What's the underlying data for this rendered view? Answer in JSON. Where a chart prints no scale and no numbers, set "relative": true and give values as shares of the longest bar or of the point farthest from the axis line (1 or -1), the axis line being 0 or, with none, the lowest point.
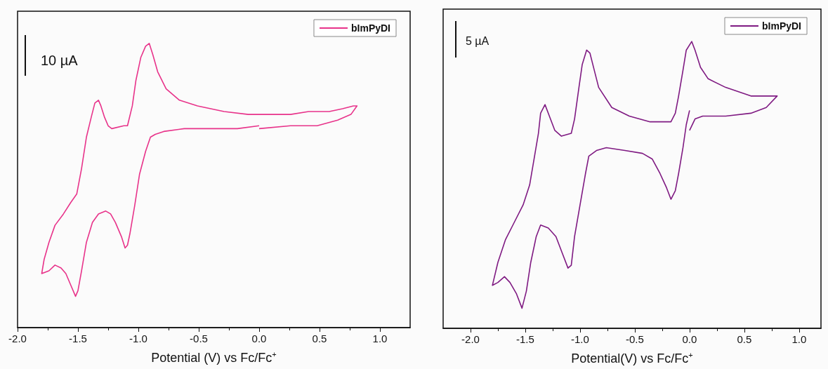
{
  "chart_data": [
    {
      "type": "line",
      "relative": true,
      "xlabel": "Potential (V) vs Fc/Fc$^{+}$",
      "xlim": [
        -2.0,
        1.25
      ],
      "xticks": [
        {
          "value": -2.0,
          "label": "-2.0"
        },
        {
          "value": -1.5,
          "label": "-1.5"
        },
        {
          "value": -1.0,
          "label": "-1.0"
        },
        {
          "value": -0.5,
          "label": "-0.5"
        },
        {
          "value": 0.0,
          "label": "0.0"
        },
        {
          "value": 0.5,
          "label": "0.5"
        },
        {
          "value": 1.0,
          "label": "1.0"
        }
      ],
      "tick_labels": "x",
      "grid": false,
      "legend": "top right",
      "annotations": [
        "10 µA"
      ],
      "series": [
        {
          "name": "bImPyDI",
          "color": "#e8338a",
          "x": [
            0.0,
            0.26,
            0.48,
            0.65,
            0.76,
            0.81,
            0.78,
            0.69,
            0.58,
            0.41,
            0.26,
            0.04,
            -0.09,
            -0.29,
            -0.51,
            -0.66,
            -0.77,
            -0.84,
            -0.88,
            -0.91,
            -0.94,
            -0.98,
            -1.02,
            -1.05,
            -1.09,
            -1.12,
            -1.22,
            -1.25,
            -1.28,
            -1.31,
            -1.33,
            -1.36,
            -1.39,
            -1.43,
            -1.47,
            -1.51,
            -1.56,
            -1.62,
            -1.69,
            -1.74,
            -1.78,
            -1.8,
            -1.74,
            -1.69,
            -1.64,
            -1.6,
            -1.56,
            -1.52,
            -1.5,
            -1.47,
            -1.43,
            -1.38,
            -1.33,
            -1.27,
            -1.23,
            -1.19,
            -1.14,
            -1.11,
            -1.09,
            -1.07,
            -1.03,
            -0.99,
            -0.94,
            -0.9,
            -0.86,
            -0.79,
            -0.62,
            -0.4,
            -0.18,
            0.0
          ],
          "values": [
            0.7,
            0.71,
            0.71,
            0.73,
            0.75,
            0.78,
            0.78,
            0.77,
            0.76,
            0.76,
            0.75,
            0.75,
            0.75,
            0.76,
            0.78,
            0.8,
            0.84,
            0.9,
            0.96,
            1.0,
            0.99,
            0.95,
            0.87,
            0.78,
            0.71,
            0.71,
            0.7,
            0.71,
            0.74,
            0.78,
            0.8,
            0.79,
            0.74,
            0.67,
            0.56,
            0.47,
            0.44,
            0.4,
            0.36,
            0.3,
            0.24,
            0.19,
            0.2,
            0.22,
            0.21,
            0.19,
            0.15,
            0.11,
            0.13,
            0.2,
            0.3,
            0.37,
            0.4,
            0.41,
            0.4,
            0.37,
            0.32,
            0.28,
            0.29,
            0.33,
            0.43,
            0.54,
            0.62,
            0.67,
            0.68,
            0.69,
            0.7,
            0.7,
            0.7,
            0.71
          ]
        }
      ]
    },
    {
      "type": "line",
      "relative": true,
      "xlabel": "Potential(V) vs Fc/Fc$^{+}$",
      "xlim": [
        -2.25,
        1.2
      ],
      "xticks": [
        {
          "value": -2.0,
          "label": "-2.0"
        },
        {
          "value": -1.5,
          "label": "-1.5"
        },
        {
          "value": -1.0,
          "label": "-1.0"
        },
        {
          "value": -0.5,
          "label": "-0.5"
        },
        {
          "value": 0.0,
          "label": "0.0"
        },
        {
          "value": 0.5,
          "label": "0.5"
        },
        {
          "value": 1.0,
          "label": "1.0"
        }
      ],
      "tick_labels": "x",
      "grid": false,
      "legend": "top right",
      "annotations": [
        "5 µA"
      ],
      "series": [
        {
          "name": "bImPyDI",
          "color": "#7f1a82",
          "x": [
            0.0,
            0.05,
            0.12,
            0.33,
            0.56,
            0.7,
            0.8,
            0.75,
            0.56,
            0.33,
            0.17,
            0.1,
            0.05,
            0.02,
            -0.03,
            -0.06,
            -0.1,
            -0.13,
            -0.17,
            -0.22,
            -0.36,
            -0.55,
            -0.71,
            -0.83,
            -0.87,
            -0.91,
            -0.94,
            -0.98,
            -1.01,
            -1.05,
            -1.08,
            -1.17,
            -1.23,
            -1.28,
            -1.32,
            -1.36,
            -1.38,
            -1.42,
            -1.46,
            -1.52,
            -1.6,
            -1.68,
            -1.75,
            -1.8,
            -1.75,
            -1.69,
            -1.64,
            -1.58,
            -1.53,
            -1.49,
            -1.45,
            -1.4,
            -1.36,
            -1.29,
            -1.22,
            -1.16,
            -1.11,
            -1.08,
            -1.05,
            -1.0,
            -0.95,
            -0.92,
            -0.85,
            -0.76,
            -0.59,
            -0.43,
            -0.34,
            -0.27,
            -0.21,
            -0.17,
            -0.13,
            -0.1,
            -0.06,
            -0.03,
            0.0
          ],
          "values": [
            0.69,
            0.73,
            0.74,
            0.74,
            0.75,
            0.77,
            0.81,
            0.81,
            0.81,
            0.84,
            0.87,
            0.91,
            0.97,
            1.0,
            0.97,
            0.9,
            0.81,
            0.75,
            0.72,
            0.72,
            0.72,
            0.74,
            0.77,
            0.84,
            0.9,
            0.96,
            0.97,
            0.92,
            0.84,
            0.73,
            0.68,
            0.67,
            0.69,
            0.74,
            0.78,
            0.75,
            0.68,
            0.59,
            0.5,
            0.43,
            0.37,
            0.31,
            0.23,
            0.15,
            0.16,
            0.18,
            0.16,
            0.12,
            0.07,
            0.13,
            0.23,
            0.32,
            0.36,
            0.35,
            0.32,
            0.26,
            0.21,
            0.22,
            0.32,
            0.43,
            0.54,
            0.6,
            0.62,
            0.63,
            0.62,
            0.61,
            0.59,
            0.54,
            0.49,
            0.45,
            0.48,
            0.54,
            0.63,
            0.71,
            0.76
          ]
        }
      ]
    }
  ]
}
